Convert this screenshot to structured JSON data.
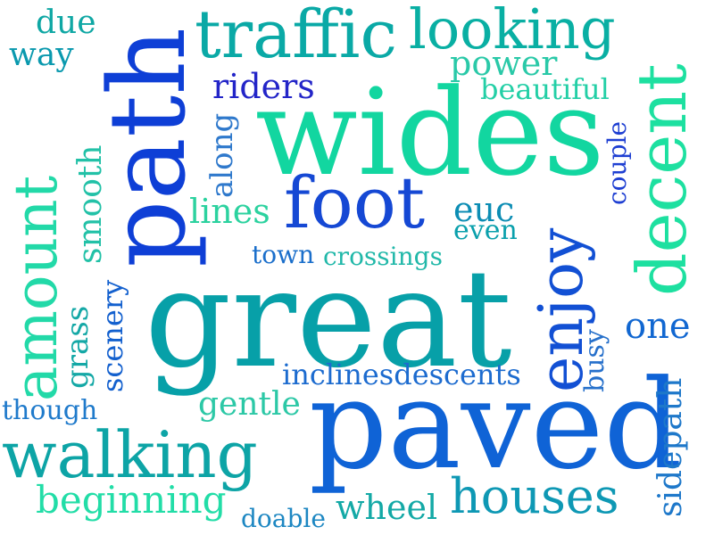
{
  "words": [
    {
      "text": "great",
      "color": "#07A0A8"
    },
    {
      "text": "wides",
      "color": "#12D6A0"
    },
    {
      "text": "paved",
      "color": "#0F63D6"
    },
    {
      "text": "path",
      "color": "#0E3FD6"
    },
    {
      "text": "amount",
      "color": "#22D9A8"
    },
    {
      "text": "enjoy",
      "color": "#1250D4"
    },
    {
      "text": "decent",
      "color": "#1DE0A0"
    },
    {
      "text": "traffic",
      "color": "#0AA9A6"
    },
    {
      "text": "looking",
      "color": "#09AFA3"
    },
    {
      "text": "walking",
      "color": "#0DA4A6"
    },
    {
      "text": "foot",
      "color": "#1548D4"
    },
    {
      "text": "houses",
      "color": "#0E98B4"
    },
    {
      "text": "power",
      "color": "#2AC9A8"
    },
    {
      "text": "beautiful",
      "color": "#23CFA6"
    },
    {
      "text": "riders",
      "color": "#2325C8"
    },
    {
      "text": "due",
      "color": "#0FA7A4"
    },
    {
      "text": "way",
      "color": "#0A99AE"
    },
    {
      "text": "along",
      "color": "#2F79CC"
    },
    {
      "text": "smooth",
      "color": "#22C1A7"
    },
    {
      "text": "lines",
      "color": "#2CD29F"
    },
    {
      "text": "euc",
      "color": "#0C8DB4"
    },
    {
      "text": "even",
      "color": "#0AA0AC"
    },
    {
      "text": "couple",
      "color": "#1E3FD2"
    },
    {
      "text": "town",
      "color": "#1B6FCB"
    },
    {
      "text": "crossings",
      "color": "#21B8A9"
    },
    {
      "text": "grass",
      "color": "#14A8A6"
    },
    {
      "text": "scenery",
      "color": "#1360CE"
    },
    {
      "text": "one",
      "color": "#1167D1"
    },
    {
      "text": "busy",
      "color": "#2670CB"
    },
    {
      "text": "inclinesdescents",
      "color": "#1C6BCF"
    },
    {
      "text": "though",
      "color": "#1F7ACB"
    },
    {
      "text": "gentle",
      "color": "#2CC8A6"
    },
    {
      "text": "sidepath",
      "color": "#1E78CA"
    },
    {
      "text": "beginning",
      "color": "#22DDA7"
    },
    {
      "text": "wheel",
      "color": "#14A9A6"
    },
    {
      "text": "doable",
      "color": "#1D87C2"
    }
  ]
}
